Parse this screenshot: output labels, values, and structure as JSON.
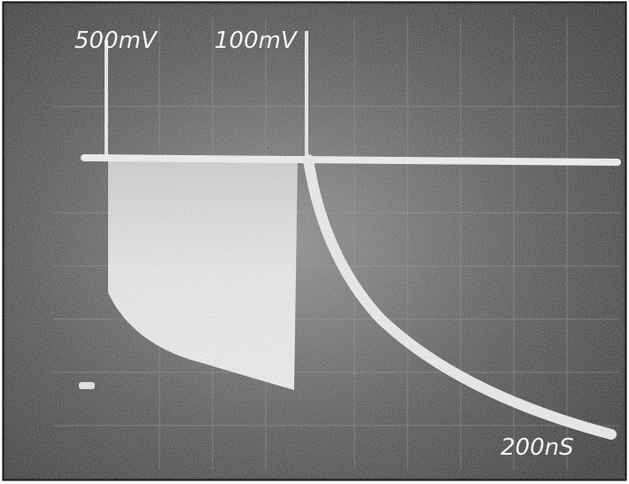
{
  "labels": {
    "ch1_scale": "500mV",
    "ch2_scale": "100mV",
    "time_scale": "200nS"
  }
}
